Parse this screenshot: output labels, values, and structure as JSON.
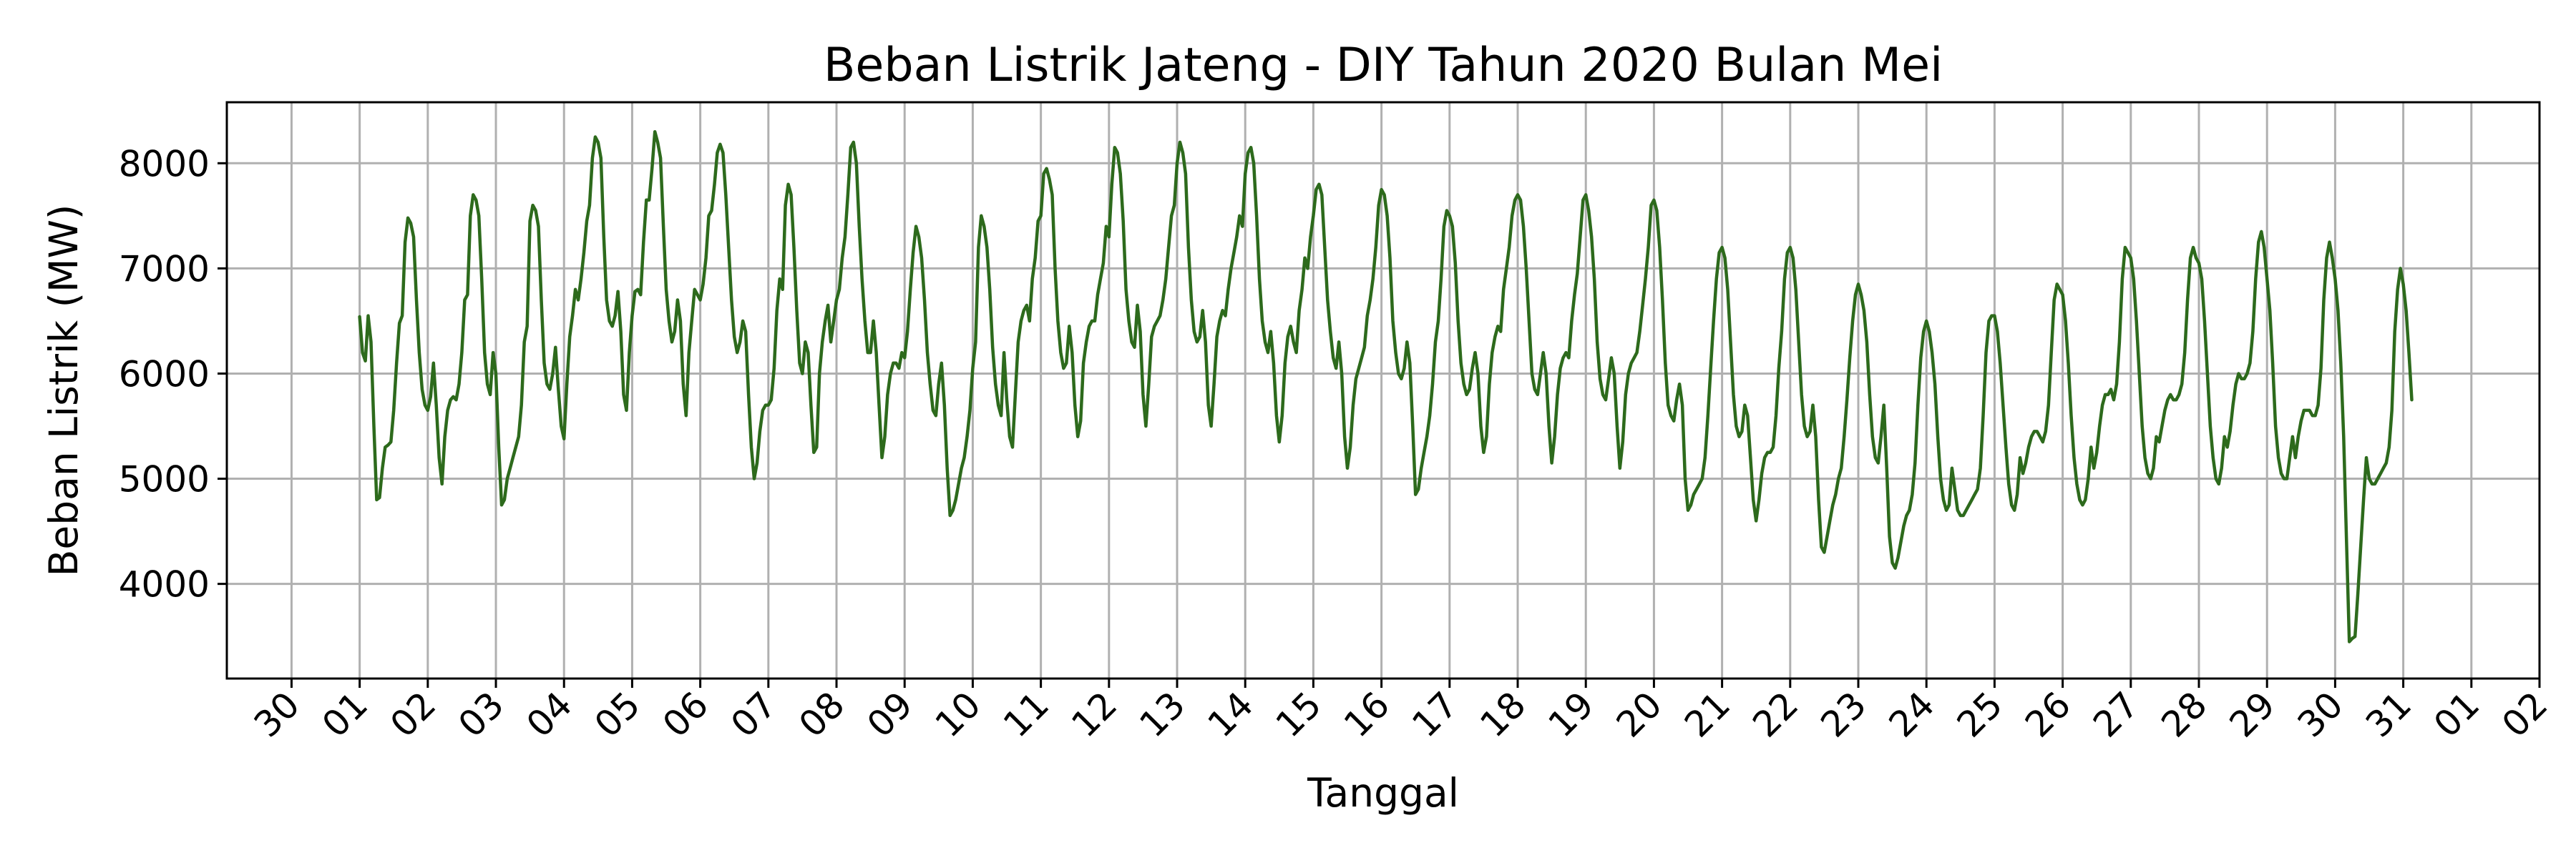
{
  "chart_data": {
    "type": "line",
    "title": "Beban Listrik Jateng - DIY Tahun 2020 Bulan Mei",
    "xlabel": "Tanggal",
    "ylabel": "Beban Listrik (MW)",
    "grid": true,
    "x_unit": "day offset from 30 April 2020 00:00",
    "xlim": [
      -0.95,
      33.0
    ],
    "ylim": [
      3100,
      8580
    ],
    "xticks": [
      {
        "pos": 0,
        "label": "30"
      },
      {
        "pos": 1,
        "label": "01"
      },
      {
        "pos": 2,
        "label": "02"
      },
      {
        "pos": 3,
        "label": "03"
      },
      {
        "pos": 4,
        "label": "04"
      },
      {
        "pos": 5,
        "label": "05"
      },
      {
        "pos": 6,
        "label": "06"
      },
      {
        "pos": 7,
        "label": "07"
      },
      {
        "pos": 8,
        "label": "08"
      },
      {
        "pos": 9,
        "label": "09"
      },
      {
        "pos": 10,
        "label": "10"
      },
      {
        "pos": 11,
        "label": "11"
      },
      {
        "pos": 12,
        "label": "12"
      },
      {
        "pos": 13,
        "label": "13"
      },
      {
        "pos": 14,
        "label": "14"
      },
      {
        "pos": 15,
        "label": "15"
      },
      {
        "pos": 16,
        "label": "16"
      },
      {
        "pos": 17,
        "label": "17"
      },
      {
        "pos": 18,
        "label": "18"
      },
      {
        "pos": 19,
        "label": "19"
      },
      {
        "pos": 20,
        "label": "20"
      },
      {
        "pos": 21,
        "label": "21"
      },
      {
        "pos": 22,
        "label": "22"
      },
      {
        "pos": 23,
        "label": "23"
      },
      {
        "pos": 24,
        "label": "24"
      },
      {
        "pos": 25,
        "label": "25"
      },
      {
        "pos": 26,
        "label": "26"
      },
      {
        "pos": 27,
        "label": "27"
      },
      {
        "pos": 28,
        "label": "28"
      },
      {
        "pos": 29,
        "label": "29"
      },
      {
        "pos": 30,
        "label": "30"
      },
      {
        "pos": 31,
        "label": "31"
      },
      {
        "pos": 32,
        "label": "01"
      },
      {
        "pos": 33,
        "label": "02"
      }
    ],
    "yticks": [
      {
        "value": 4000,
        "label": "4000"
      },
      {
        "value": 5000,
        "label": "5000"
      },
      {
        "value": 6000,
        "label": "6000"
      },
      {
        "value": 7000,
        "label": "7000"
      },
      {
        "value": 8000,
        "label": "8000"
      }
    ],
    "series": [
      {
        "name": "Beban Listrik",
        "color": "#2d6a1c",
        "x_start": 1.0,
        "x_step": 0.0416667,
        "daily_profiles": [
          [
            6540,
            6200,
            6120,
            6550,
            6300,
            5500,
            4800,
            4820,
            5100,
            5300,
            5320,
            5350,
            5650,
            6100,
            6480,
            6550,
            7250,
            7480,
            7430,
            7300,
            6700,
            6200,
            5850,
            5700
          ],
          [
            5650,
            5780,
            6100,
            5700,
            5200,
            4950,
            5400,
            5650,
            5750,
            5780,
            5750,
            5900,
            6200,
            6700,
            6750,
            7500,
            7700,
            7650,
            7500,
            6900,
            6200,
            5900,
            5800,
            6200
          ],
          [
            6000,
            5300,
            4750,
            4800,
            5000,
            5100,
            5200,
            5300,
            5400,
            5700,
            6300,
            6450,
            7450,
            7600,
            7550,
            7400,
            6700,
            6100,
            5900,
            5850,
            6000,
            6250,
            5850,
            5500
          ],
          [
            5380,
            5900,
            6350,
            6550,
            6800,
            6700,
            6900,
            7150,
            7450,
            7600,
            8050,
            8250,
            8200,
            8050,
            7300,
            6700,
            6500,
            6450,
            6550,
            6780,
            6400,
            5800,
            5650,
            6200
          ],
          [
            6550,
            6780,
            6800,
            6750,
            7250,
            7650,
            7650,
            7950,
            8300,
            8200,
            8050,
            7400,
            6800,
            6500,
            6300,
            6400,
            6700,
            6500,
            5900,
            5600,
            6200,
            6500,
            6800,
            6750
          ],
          [
            6700,
            6850,
            7100,
            7500,
            7550,
            7800,
            8100,
            8180,
            8100,
            7700,
            7200,
            6700,
            6350,
            6200,
            6300,
            6500,
            6400,
            5800,
            5300,
            5000,
            5150,
            5450,
            5650,
            5700
          ],
          [
            5700,
            5750,
            6050,
            6600,
            6900,
            6800,
            7600,
            7800,
            7700,
            7200,
            6600,
            6100,
            6000,
            6300,
            6200,
            5700,
            5250,
            5300,
            6000,
            6300,
            6500,
            6650,
            6300,
            6500
          ],
          [
            6700,
            6800,
            7100,
            7300,
            7700,
            8150,
            8200,
            8000,
            7400,
            6900,
            6500,
            6200,
            6200,
            6500,
            6200,
            5700,
            5200,
            5400,
            5800,
            6000,
            6100,
            6100,
            6050,
            6200
          ],
          [
            6150,
            6400,
            6800,
            7150,
            7400,
            7300,
            7100,
            6700,
            6200,
            5900,
            5650,
            5600,
            5900,
            6100,
            5700,
            5100,
            4650,
            4700,
            4800,
            4950,
            5100,
            5200,
            5400,
            5650
          ],
          [
            6050,
            6300,
            7200,
            7500,
            7400,
            7200,
            6800,
            6250,
            5900,
            5700,
            5600,
            6200,
            5750,
            5400,
            5300,
            5800,
            6300,
            6500,
            6600,
            6650,
            6500,
            6900,
            7100,
            7450
          ],
          [
            7500,
            7900,
            7950,
            7850,
            7700,
            7000,
            6500,
            6200,
            6050,
            6100,
            6450,
            6200,
            5700,
            5400,
            5550,
            6100,
            6300,
            6450,
            6500,
            6500,
            6750,
            6900,
            7050,
            7400
          ],
          [
            7300,
            7800,
            8150,
            8100,
            7900,
            7450,
            6800,
            6500,
            6300,
            6250,
            6650,
            6400,
            5800,
            5500,
            5900,
            6350,
            6450,
            6500,
            6550,
            6700,
            6900,
            7200,
            7500,
            7600
          ],
          [
            8000,
            8200,
            8100,
            7900,
            7200,
            6700,
            6400,
            6300,
            6350,
            6600,
            6300,
            5700,
            5500,
            5900,
            6350,
            6500,
            6600,
            6550,
            6800,
            7000,
            7150,
            7300,
            7500,
            7400
          ],
          [
            7900,
            8100,
            8150,
            8000,
            7500,
            6900,
            6500,
            6300,
            6200,
            6400,
            6100,
            5600,
            5350,
            5600,
            6100,
            6350,
            6450,
            6300,
            6200,
            6600,
            6800,
            7100,
            7000,
            7300
          ],
          [
            7500,
            7750,
            7800,
            7700,
            7200,
            6700,
            6400,
            6150,
            6050,
            6300,
            6000,
            5400,
            5100,
            5300,
            5700,
            5950,
            6050,
            6150,
            6250,
            6550,
            6700,
            6900,
            7200,
            7600
          ],
          [
            7750,
            7700,
            7500,
            7100,
            6500,
            6200,
            6000,
            5950,
            6050,
            6300,
            6100,
            5500,
            4850,
            4900,
            5100,
            5250,
            5400,
            5600,
            5900,
            6300,
            6500,
            6900,
            7400,
            7550
          ],
          [
            7500,
            7400,
            7050,
            6500,
            6100,
            5900,
            5800,
            5850,
            6050,
            6200,
            6000,
            5500,
            5250,
            5400,
            5900,
            6200,
            6350,
            6450,
            6400,
            6800,
            7000,
            7200,
            7500,
            7650
          ],
          [
            7700,
            7650,
            7400,
            7000,
            6500,
            6000,
            5850,
            5800,
            6000,
            6200,
            6000,
            5500,
            5150,
            5400,
            5800,
            6050,
            6150,
            6200,
            6150,
            6500,
            6750,
            6950,
            7300,
            7650
          ],
          [
            7700,
            7550,
            7300,
            6900,
            6300,
            5950,
            5800,
            5750,
            5950,
            6150,
            6000,
            5500,
            5100,
            5350,
            5800,
            6000,
            6100,
            6150,
            6200,
            6400,
            6650,
            6900,
            7200,
            7600
          ],
          [
            7650,
            7550,
            7200,
            6700,
            6100,
            5700,
            5600,
            5550,
            5750,
            5900,
            5700,
            5000,
            4700,
            4750,
            4850,
            4900,
            4950,
            5000,
            5200,
            5600,
            6050,
            6500,
            6900,
            7150
          ],
          [
            7200,
            7100,
            6800,
            6300,
            5800,
            5500,
            5400,
            5450,
            5700,
            5600,
            5200,
            4800,
            4600,
            4800,
            5050,
            5200,
            5250,
            5250,
            5300,
            5600,
            6050,
            6400,
            6900,
            7150
          ],
          [
            7200,
            7100,
            6800,
            6300,
            5800,
            5500,
            5400,
            5450,
            5700,
            5400,
            4800,
            4350,
            4300,
            4450,
            4600,
            4750,
            4850,
            5000,
            5100,
            5400,
            5750,
            6150,
            6500,
            6750
          ],
          [
            6850,
            6750,
            6600,
            6300,
            5800,
            5400,
            5200,
            5150,
            5400,
            5700,
            5100,
            4450,
            4200,
            4150,
            4250,
            4400,
            4550,
            4650,
            4700,
            4850,
            5150,
            5700,
            6150,
            6400
          ],
          [
            6500,
            6400,
            6200,
            5900,
            5400,
            5000,
            4800,
            4700,
            4750,
            5100,
            4900,
            4700,
            4650,
            4650,
            4700,
            4750,
            4800,
            4850,
            4900,
            5100,
            5600,
            6200,
            6500,
            6550
          ],
          [
            6550,
            6400,
            6100,
            5700,
            5300,
            4950,
            4750,
            4700,
            4850,
            5200,
            5050,
            5150,
            5300,
            5400,
            5450,
            5450,
            5400,
            5350,
            5450,
            5700,
            6200,
            6700,
            6850,
            6800
          ],
          [
            6750,
            6500,
            6100,
            5600,
            5200,
            4950,
            4800,
            4750,
            4800,
            5000,
            5300,
            5100,
            5250,
            5500,
            5700,
            5800,
            5800,
            5850,
            5750,
            5900,
            6300,
            6900,
            7200,
            7150
          ],
          [
            7100,
            6900,
            6500,
            6000,
            5500,
            5200,
            5050,
            5000,
            5100,
            5400,
            5350,
            5500,
            5650,
            5750,
            5800,
            5750,
            5750,
            5800,
            5900,
            6200,
            6700,
            7100,
            7200,
            7100
          ],
          [
            7050,
            6900,
            6500,
            6000,
            5500,
            5200,
            5000,
            4950,
            5100,
            5400,
            5300,
            5450,
            5700,
            5900,
            6000,
            5950,
            5950,
            6000,
            6100,
            6400,
            6900,
            7250,
            7350,
            7200
          ],
          [
            6900,
            6600,
            6100,
            5500,
            5200,
            5050,
            5000,
            5000,
            5200,
            5400,
            5200,
            5400,
            5550,
            5650,
            5650,
            5650,
            5600,
            5600,
            5700,
            6050,
            6700,
            7100,
            7250,
            7100
          ],
          [
            6900,
            6600,
            6100,
            5400,
            4400,
            3450,
            3480,
            3500,
            3900,
            4350,
            4800,
            5200,
            5000,
            4950,
            4950,
            5000,
            5050,
            5100,
            5150,
            5300,
            5650,
            6400,
            6800,
            7000
          ],
          [
            6850,
            6600,
            6200,
            5750
          ]
        ]
      }
    ]
  }
}
